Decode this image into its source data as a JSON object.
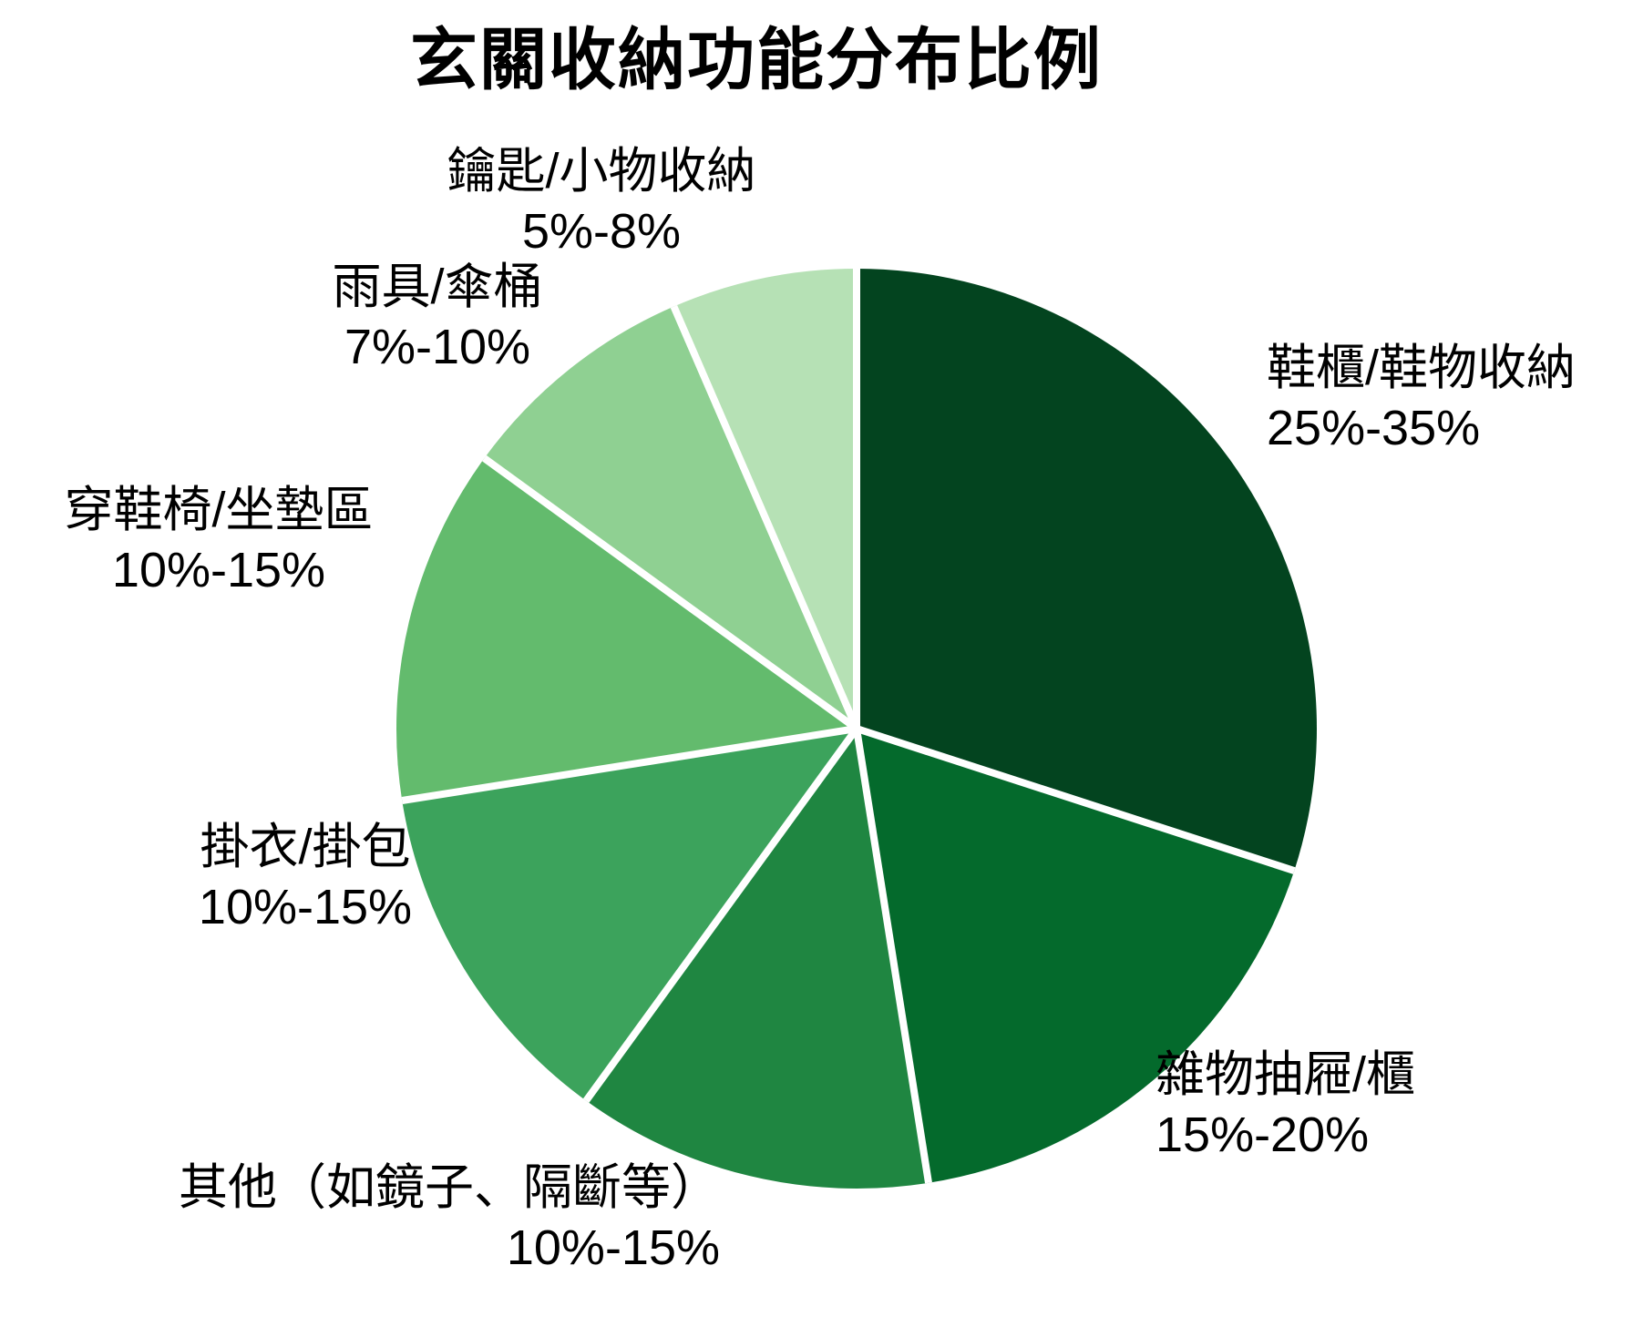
{
  "title": "玄關收納功能分布比例",
  "chart_data": {
    "type": "pie",
    "title": "玄關收納功能分布比例",
    "direction": "clockwise",
    "start_angle_deg": 0,
    "legend_position": "none",
    "background": "#FFFFFF",
    "separator_color": "#FFFFFF",
    "slices": [
      {
        "label": "鞋櫃/鞋物收納",
        "range": "25%-35%",
        "value_mid_pct": 30,
        "color": "#03441F"
      },
      {
        "label": "雜物抽屜/櫃",
        "range": "15%-20%",
        "value_mid_pct": 17.5,
        "color": "#046A2C"
      },
      {
        "label": "其他（如鏡子、隔斷等）",
        "range": "10%-15%",
        "value_mid_pct": 12.5,
        "color": "#1F8641"
      },
      {
        "label": "掛衣/掛包",
        "range": "10%-15%",
        "value_mid_pct": 12.5,
        "color": "#3CA35C"
      },
      {
        "label": "穿鞋椅/坐墊區",
        "range": "10%-15%",
        "value_mid_pct": 12.5,
        "color": "#63BB6D"
      },
      {
        "label": "雨具/傘桶",
        "range": "7%-10%",
        "value_mid_pct": 8.5,
        "color": "#8FD092"
      },
      {
        "label": "鑰匙/小物收納",
        "range": "5%-8%",
        "value_mid_pct": 6.5,
        "color": "#B6E1B5"
      }
    ]
  }
}
